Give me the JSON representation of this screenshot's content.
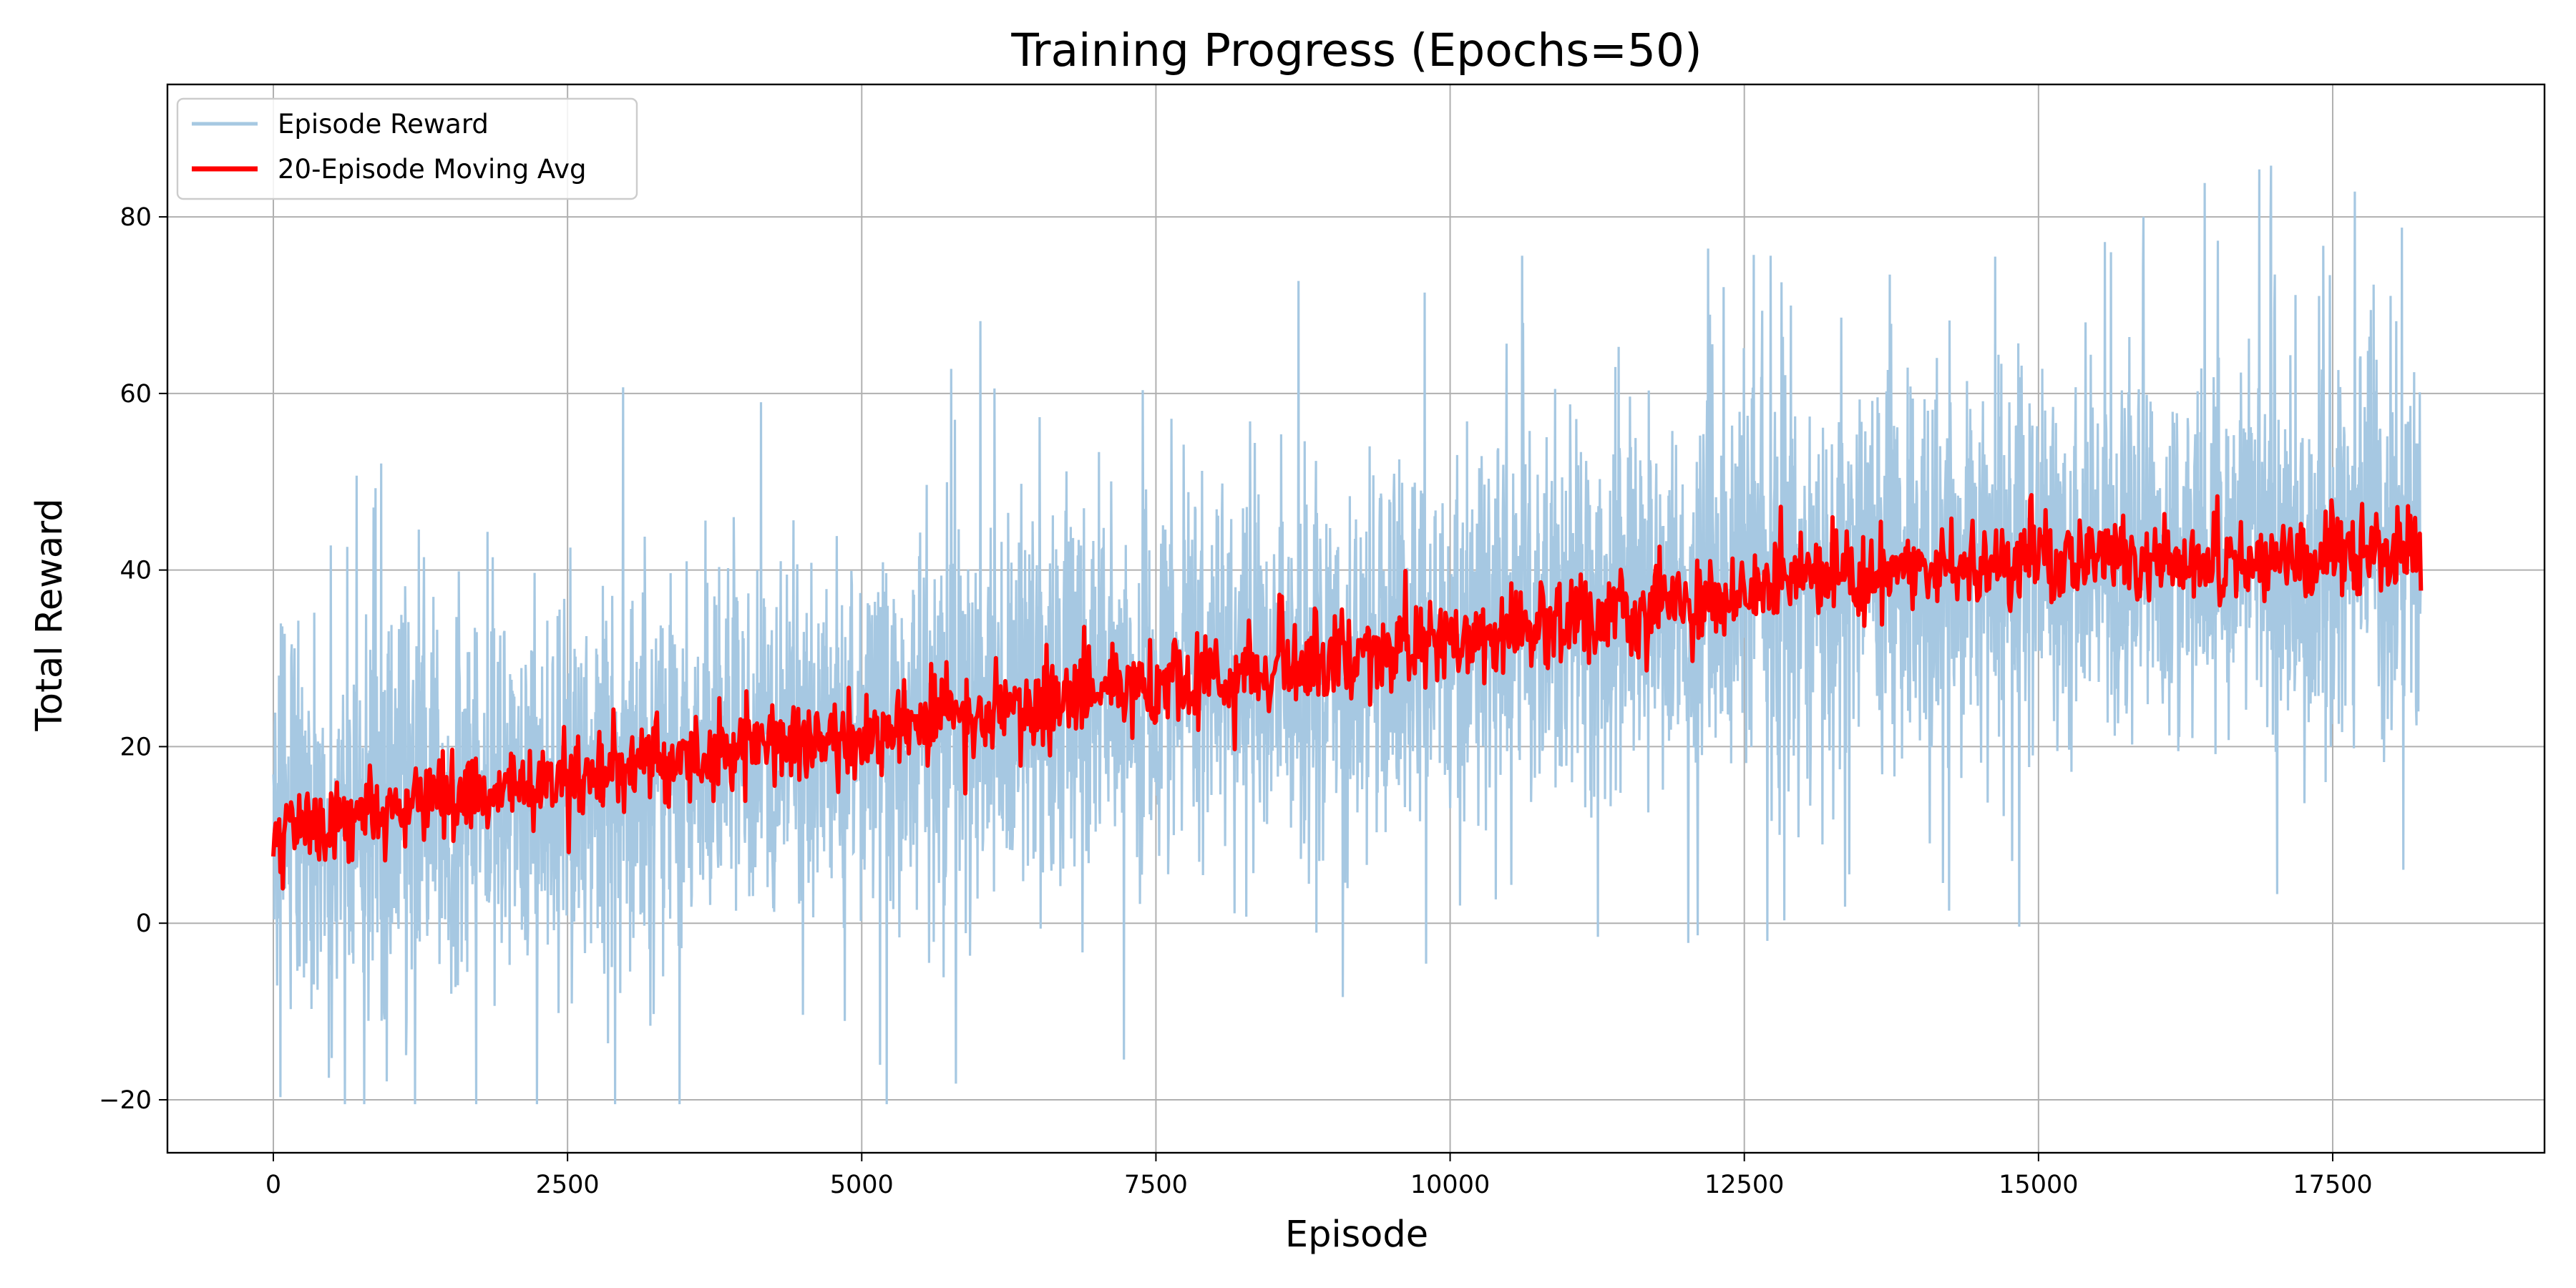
{
  "chart_data": {
    "type": "line",
    "title": "Training Progress (Epochs=50)",
    "xlabel": "Episode",
    "ylabel": "Total Reward",
    "xlim": [
      -900,
      19300
    ],
    "ylim": [
      -26,
      95
    ],
    "x_ticks": [
      0,
      2500,
      5000,
      7500,
      10000,
      12500,
      15000,
      17500
    ],
    "x_tick_labels": [
      "0",
      "2500",
      "5000",
      "7500",
      "10000",
      "12500",
      "15000",
      "17500"
    ],
    "y_ticks": [
      -20,
      0,
      20,
      40,
      60,
      80
    ],
    "y_tick_labels": [
      "−20",
      "0",
      "20",
      "40",
      "60",
      "80"
    ],
    "grid": true,
    "legend_position": "top-left",
    "colors": {
      "raw": "#a6c8e2",
      "avg": "#ff0000",
      "grid": "#b0b0b0"
    },
    "episodes_total": 18250,
    "series": [
      {
        "name": "Episode Reward",
        "note_trend_x": [
          0,
          2500,
          5000,
          7500,
          10000,
          12500,
          15000,
          17500,
          18250
        ],
        "trend_mean": [
          11,
          16,
          21,
          27,
          32,
          38,
          42,
          41,
          41
        ],
        "spread": 14,
        "max": 89,
        "min": -20.5
      },
      {
        "name": "20-Episode Moving Avg",
        "x": [
          0,
          1000,
          2000,
          3000,
          4000,
          5000,
          6000,
          7000,
          8000,
          9000,
          10000,
          11000,
          12000,
          13000,
          14000,
          15000,
          16000,
          17000,
          18250
        ],
        "y": [
          10,
          13,
          15,
          18,
          20,
          21,
          24,
          26,
          28,
          30,
          32,
          34,
          36,
          39,
          40,
          41,
          41,
          41,
          43
        ]
      }
    ]
  }
}
